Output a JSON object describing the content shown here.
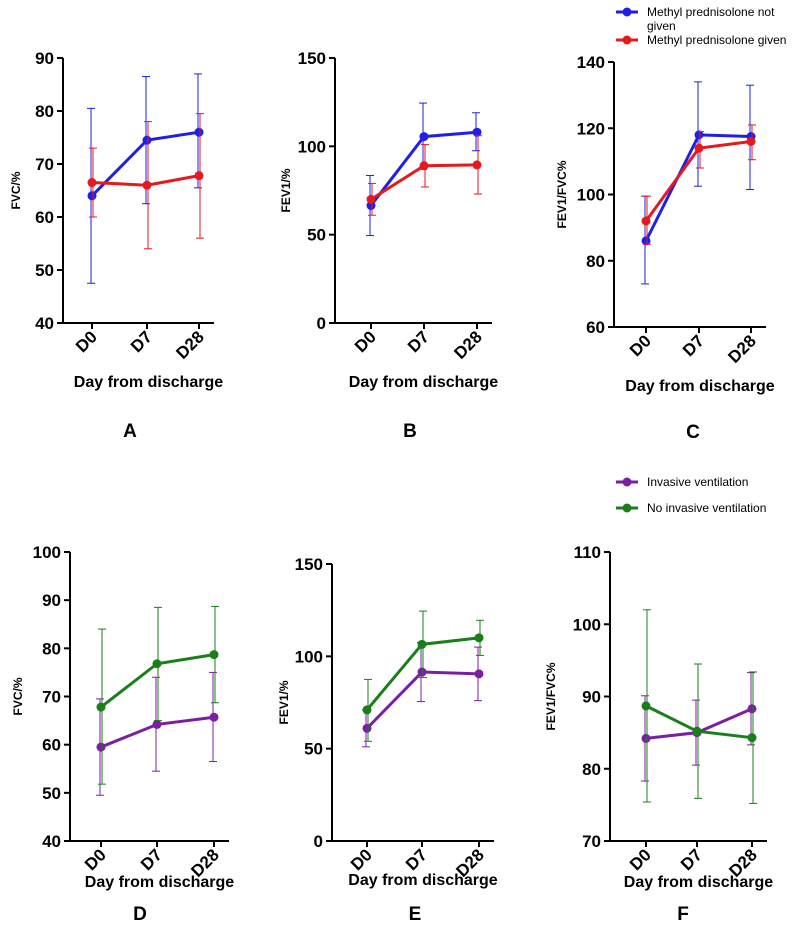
{
  "chart_data": [
    {
      "id": "A",
      "type": "line",
      "panel_label": "A",
      "xlabel": "Day from discharge",
      "ylabel": "FVC/%",
      "categories": [
        "D0",
        "D7",
        "D28"
      ],
      "ylim": [
        40,
        90
      ],
      "yticks": [
        40,
        50,
        60,
        70,
        80,
        90
      ],
      "series": [
        {
          "name": "Methyl prednisolone not given",
          "color": "#1f1fe6",
          "values": [
            64,
            74.5,
            76
          ],
          "err_low": [
            47.5,
            62.5,
            65.5
          ],
          "err_high": [
            80.5,
            86.5,
            87
          ]
        },
        {
          "name": "Methyl prednisolone given",
          "color": "#e6191f",
          "values": [
            66.5,
            66,
            67.8
          ],
          "err_low": [
            60,
            54,
            56
          ],
          "err_high": [
            73,
            78,
            79.5
          ]
        }
      ]
    },
    {
      "id": "B",
      "type": "line",
      "panel_label": "B",
      "xlabel": "Day from discharge",
      "ylabel": "FEV1/%",
      "categories": [
        "D0",
        "D7",
        "D28"
      ],
      "ylim": [
        0,
        150
      ],
      "yticks": [
        0,
        50,
        100,
        150
      ],
      "series": [
        {
          "name": "Methyl prednisolone not given",
          "color": "#1f1fe6",
          "values": [
            66.5,
            105.5,
            108
          ],
          "err_low": [
            49.5,
            87,
            97.5
          ],
          "err_high": [
            83.5,
            124.5,
            119
          ]
        },
        {
          "name": "Methyl prednisolone given",
          "color": "#e6191f",
          "values": [
            70,
            89,
            89.5
          ],
          "err_low": [
            61,
            77,
            73
          ],
          "err_high": [
            79,
            101,
            106
          ]
        }
      ]
    },
    {
      "id": "C",
      "type": "line",
      "panel_label": "C",
      "xlabel": "Day from discharge",
      "ylabel": "FEV1/FVC%",
      "categories": [
        "D0",
        "D7",
        "D28"
      ],
      "ylim": [
        60,
        140
      ],
      "yticks": [
        60,
        80,
        100,
        120,
        140
      ],
      "series": [
        {
          "name": "Methyl prednisolone not given",
          "color": "#1f1fe6",
          "values": [
            86,
            118,
            117.5
          ],
          "err_low": [
            73,
            102.5,
            101.5
          ],
          "err_high": [
            99.5,
            134,
            133
          ]
        },
        {
          "name": "Methyl prednisolone given",
          "color": "#e6191f",
          "values": [
            92,
            114,
            116
          ],
          "err_low": [
            85,
            108,
            110.5
          ],
          "err_high": [
            99.5,
            119,
            121
          ]
        }
      ]
    },
    {
      "id": "D",
      "type": "line",
      "panel_label": "D",
      "xlabel": "Day from discharge",
      "ylabel": "FVC/%",
      "categories": [
        "D0",
        "D7",
        "D28"
      ],
      "ylim": [
        40,
        100
      ],
      "yticks": [
        40,
        50,
        60,
        70,
        80,
        90,
        100
      ],
      "series": [
        {
          "name": "Invasive ventilation",
          "color": "#7a1fa2",
          "values": [
            59.5,
            64.2,
            65.7
          ],
          "err_low": [
            49.5,
            54.5,
            56.5
          ],
          "err_high": [
            69.5,
            74,
            75
          ]
        },
        {
          "name": "No invasive ventilation",
          "color": "#1a7f1a",
          "values": [
            67.8,
            76.8,
            78.7
          ],
          "err_low": [
            51.8,
            65,
            68.7
          ],
          "err_high": [
            84,
            88.5,
            88.7
          ]
        }
      ]
    },
    {
      "id": "E",
      "type": "line",
      "panel_label": "E",
      "xlabel": "Day from discharge",
      "ylabel": "FEV1/%",
      "categories": [
        "D0",
        "D7",
        "D28"
      ],
      "ylim": [
        0,
        150
      ],
      "yticks": [
        0,
        50,
        100,
        150
      ],
      "series": [
        {
          "name": "Invasive ventilation",
          "color": "#7a1fa2",
          "values": [
            61,
            91.5,
            90.5
          ],
          "err_low": [
            51,
            75.5,
            76
          ],
          "err_high": [
            71,
            107.5,
            105
          ]
        },
        {
          "name": "No invasive ventilation",
          "color": "#1a7f1a",
          "values": [
            71,
            106.5,
            110
          ],
          "err_low": [
            54,
            88.5,
            100.5
          ],
          "err_high": [
            87.5,
            124.5,
            119.5
          ]
        }
      ]
    },
    {
      "id": "F",
      "type": "line",
      "panel_label": "F",
      "xlabel": "Day from discharge",
      "ylabel": "FEV1/FVC%",
      "categories": [
        "D0",
        "D7",
        "D28"
      ],
      "ylim": [
        70,
        110
      ],
      "yticks": [
        70,
        80,
        90,
        100,
        110
      ],
      "series": [
        {
          "name": "Invasive ventilation",
          "color": "#7a1fa2",
          "values": [
            84.2,
            85,
            88.3
          ],
          "err_low": [
            78.3,
            80.5,
            83.3
          ],
          "err_high": [
            90.1,
            89.5,
            93.3
          ]
        },
        {
          "name": "No invasive ventilation",
          "color": "#1a7f1a",
          "values": [
            88.7,
            85.2,
            84.3
          ],
          "err_low": [
            75.4,
            75.9,
            75.2
          ],
          "err_high": [
            102,
            94.5,
            93.4
          ]
        }
      ]
    }
  ],
  "legends": [
    {
      "id": "legend-top",
      "entries": [
        {
          "lines": [
            "Methyl prednisolone not",
            "given"
          ],
          "color": "#1f1fe6"
        },
        {
          "lines": [
            "Methyl prednisolone given"
          ],
          "color": "#e6191f"
        }
      ]
    },
    {
      "id": "legend-bottom",
      "entries": [
        {
          "lines": [
            "Invasive ventilation"
          ],
          "color": "#7a1fa2"
        },
        {
          "lines": [
            "No invasive ventilation"
          ],
          "color": "#1a7f1a"
        }
      ]
    }
  ]
}
